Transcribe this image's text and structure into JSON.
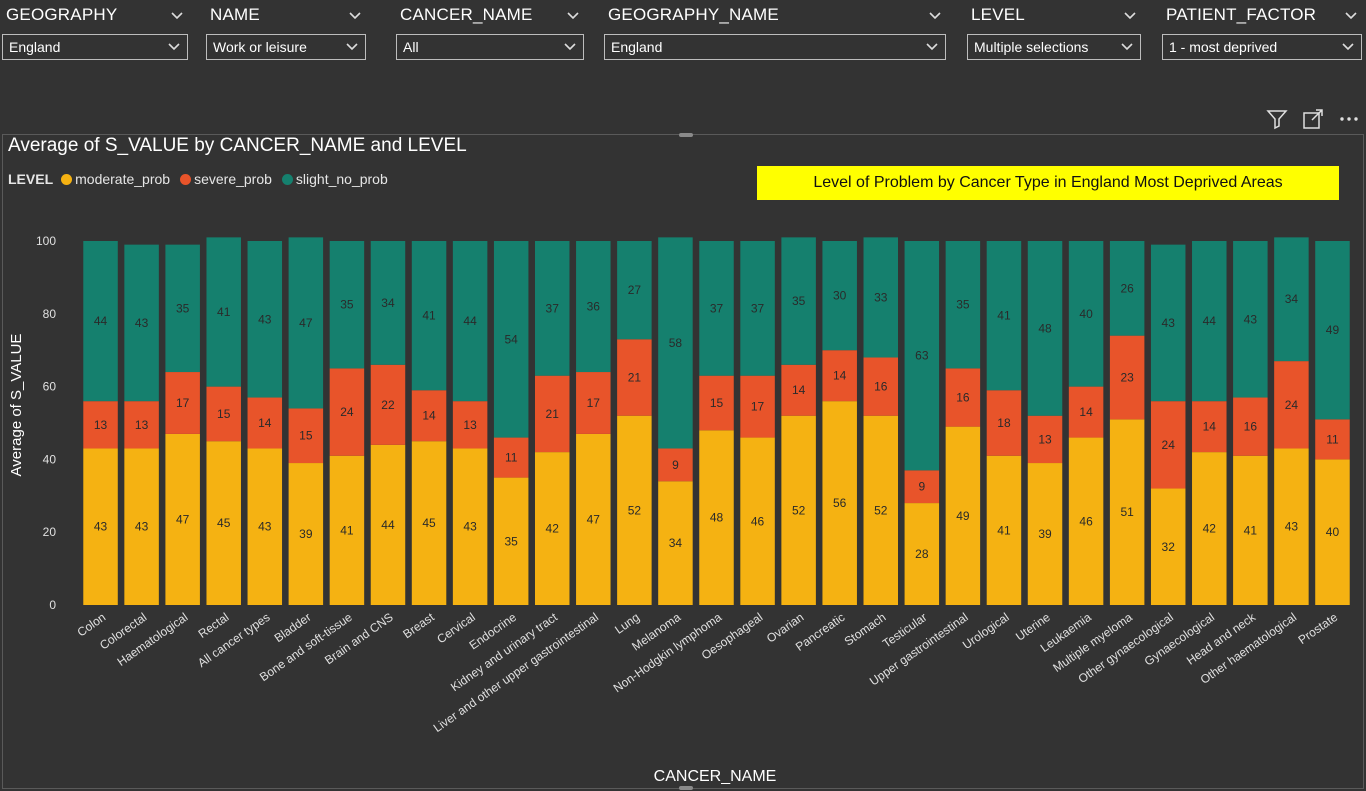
{
  "slicers": [
    {
      "title": "GEOGRAPHY",
      "value": "England"
    },
    {
      "title": "NAME",
      "value": "Work or leisure"
    },
    {
      "title": "CANCER_NAME",
      "value": "All"
    },
    {
      "title": "GEOGRAPHY_NAME",
      "value": "England"
    },
    {
      "title": "LEVEL",
      "value": "Multiple selections"
    },
    {
      "title": "PATIENT_FACTOR",
      "value": "1 - most deprived"
    }
  ],
  "toolbar": {
    "icons": [
      "filter-icon",
      "focus-mode-icon",
      "more-options-icon"
    ]
  },
  "visual": {
    "title": "Average of S_VALUE by CANCER_NAME and LEVEL",
    "legend_title": "LEVEL",
    "annotation": "Level of Problem by Cancer Type in England Most Deprived Areas"
  },
  "colors": {
    "moderate_prob": "#F5B212",
    "severe_prob": "#E8542A",
    "slight_no_prob": "#15806E",
    "annotation_bg": "#FFFF00",
    "background": "#333333"
  },
  "chart_data": {
    "type": "bar",
    "stacked": true,
    "title": "Average of S_VALUE by CANCER_NAME and LEVEL",
    "xlabel": "CANCER_NAME",
    "ylabel": "Average of S_VALUE",
    "ylim": [
      0,
      100
    ],
    "yticks": [
      "0",
      "20",
      "40",
      "60",
      "80",
      "100"
    ],
    "legend_position": "top-left",
    "grid": false,
    "categories": [
      "Colon",
      "Colorectal",
      "Haematological",
      "Rectal",
      "All cancer types",
      "Bladder",
      "Bone and soft-tissue",
      "Brain and CNS",
      "Breast",
      "Cervical",
      "Endocrine",
      "Kidney and urinary tract",
      "Liver and other upper gastrointestinal",
      "Lung",
      "Melanoma",
      "Non-Hodgkin lymphoma",
      "Oesophageal",
      "Ovarian",
      "Pancreatic",
      "Stomach",
      "Testicular",
      "Upper gastrointestinal",
      "Urological",
      "Uterine",
      "Leukaemia",
      "Multiple myeloma",
      "Other gynaecological",
      "Gynaecological",
      "Head and neck",
      "Other haematological",
      "Prostate"
    ],
    "series": [
      {
        "name": "moderate_prob",
        "values": [
          43,
          43,
          47,
          45,
          43,
          39,
          41,
          44,
          45,
          43,
          35,
          42,
          47,
          52,
          34,
          48,
          46,
          52,
          56,
          52,
          28,
          49,
          41,
          39,
          46,
          51,
          32,
          42,
          41,
          43,
          40
        ]
      },
      {
        "name": "severe_prob",
        "values": [
          13,
          13,
          17,
          15,
          14,
          15,
          24,
          22,
          14,
          13,
          11,
          21,
          17,
          21,
          9,
          15,
          17,
          14,
          14,
          16,
          9,
          16,
          18,
          13,
          14,
          23,
          24,
          14,
          16,
          24,
          11
        ]
      },
      {
        "name": "slight_no_prob",
        "values": [
          44,
          43,
          35,
          41,
          43,
          47,
          35,
          34,
          41,
          44,
          54,
          37,
          36,
          27,
          58,
          37,
          37,
          35,
          30,
          33,
          63,
          35,
          41,
          48,
          40,
          26,
          43,
          44,
          43,
          34,
          49
        ]
      }
    ]
  }
}
